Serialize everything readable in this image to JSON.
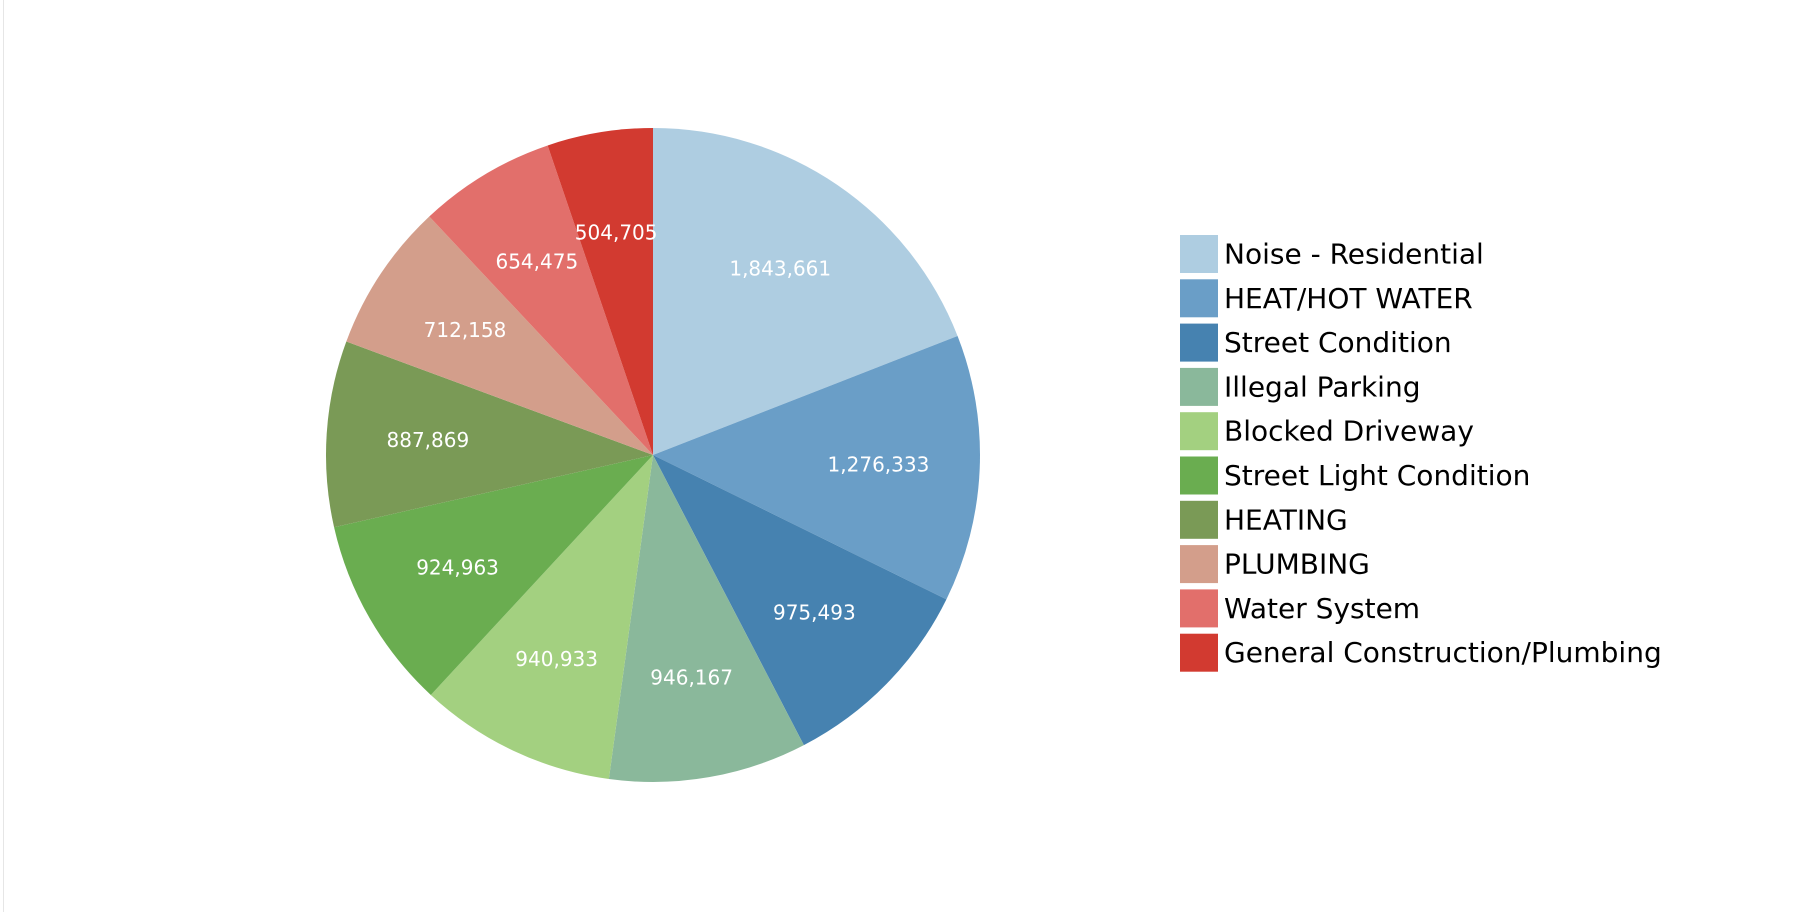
{
  "chart_data": {
    "type": "pie",
    "title": "",
    "legend_position": "right",
    "categories": [
      "Noise - Residential",
      "HEAT/HOT WATER",
      "Street Condition",
      "Illegal Parking",
      "Blocked Driveway",
      "Street Light Condition",
      "HEATING",
      "PLUMBING",
      "Water System",
      "General Construction/Plumbing"
    ],
    "values": [
      1843661,
      1276333,
      975493,
      946167,
      940933,
      924963,
      887869,
      712158,
      654475,
      504705
    ],
    "value_labels": [
      "1,843,661",
      "1,276,333",
      "975,493",
      "946,167",
      "940,933",
      "924,963",
      "887,869",
      "712,158",
      "654,475",
      "504,705"
    ],
    "colors": [
      "#aecde1",
      "#6a9ec7",
      "#4682b0",
      "#8ab89b",
      "#a3d080",
      "#6aad50",
      "#7a9a56",
      "#d39e8b",
      "#e26f6b",
      "#d23a30"
    ]
  }
}
